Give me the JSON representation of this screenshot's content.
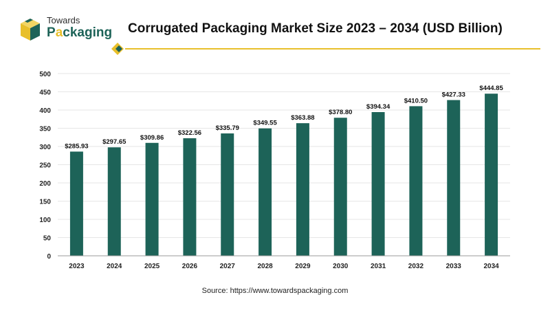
{
  "brand": {
    "line1": "Towards",
    "line2": "Packaging"
  },
  "colors": {
    "bar": "#1d6358",
    "brand_green": "#1d6358",
    "brand_gold": "#e8bf2a",
    "divider": "#e8bf2a"
  },
  "icons": {
    "logo": "cube-logo-icon",
    "divider_marker": "diamond-marker-icon"
  },
  "source": "Source: https://www.towardspackaging.com",
  "chart_data": {
    "type": "bar",
    "title": "Corrugated Packaging Market Size 2023 – 2034 (USD Billion)",
    "xlabel": "",
    "ylabel": "",
    "categories": [
      "2023",
      "2024",
      "2025",
      "2026",
      "2027",
      "2028",
      "2029",
      "2030",
      "2031",
      "2032",
      "2033",
      "2034"
    ],
    "values": [
      285.93,
      297.65,
      309.86,
      322.56,
      335.79,
      349.55,
      363.88,
      378.8,
      394.34,
      410.5,
      427.33,
      444.85
    ],
    "value_labels": [
      "$285.93",
      "$297.65",
      "$309.86",
      "$322.56",
      "$335.79",
      "$349.55",
      "$363.88",
      "$378.80",
      "$394.34",
      "$410.50",
      "$427.33",
      "$444.85"
    ],
    "ylim": [
      0,
      500
    ],
    "yticks": [
      "0",
      "50",
      "100",
      "150",
      "200",
      "250",
      "300",
      "350",
      "400",
      "450",
      "500"
    ],
    "grid": true,
    "legend": "none"
  }
}
